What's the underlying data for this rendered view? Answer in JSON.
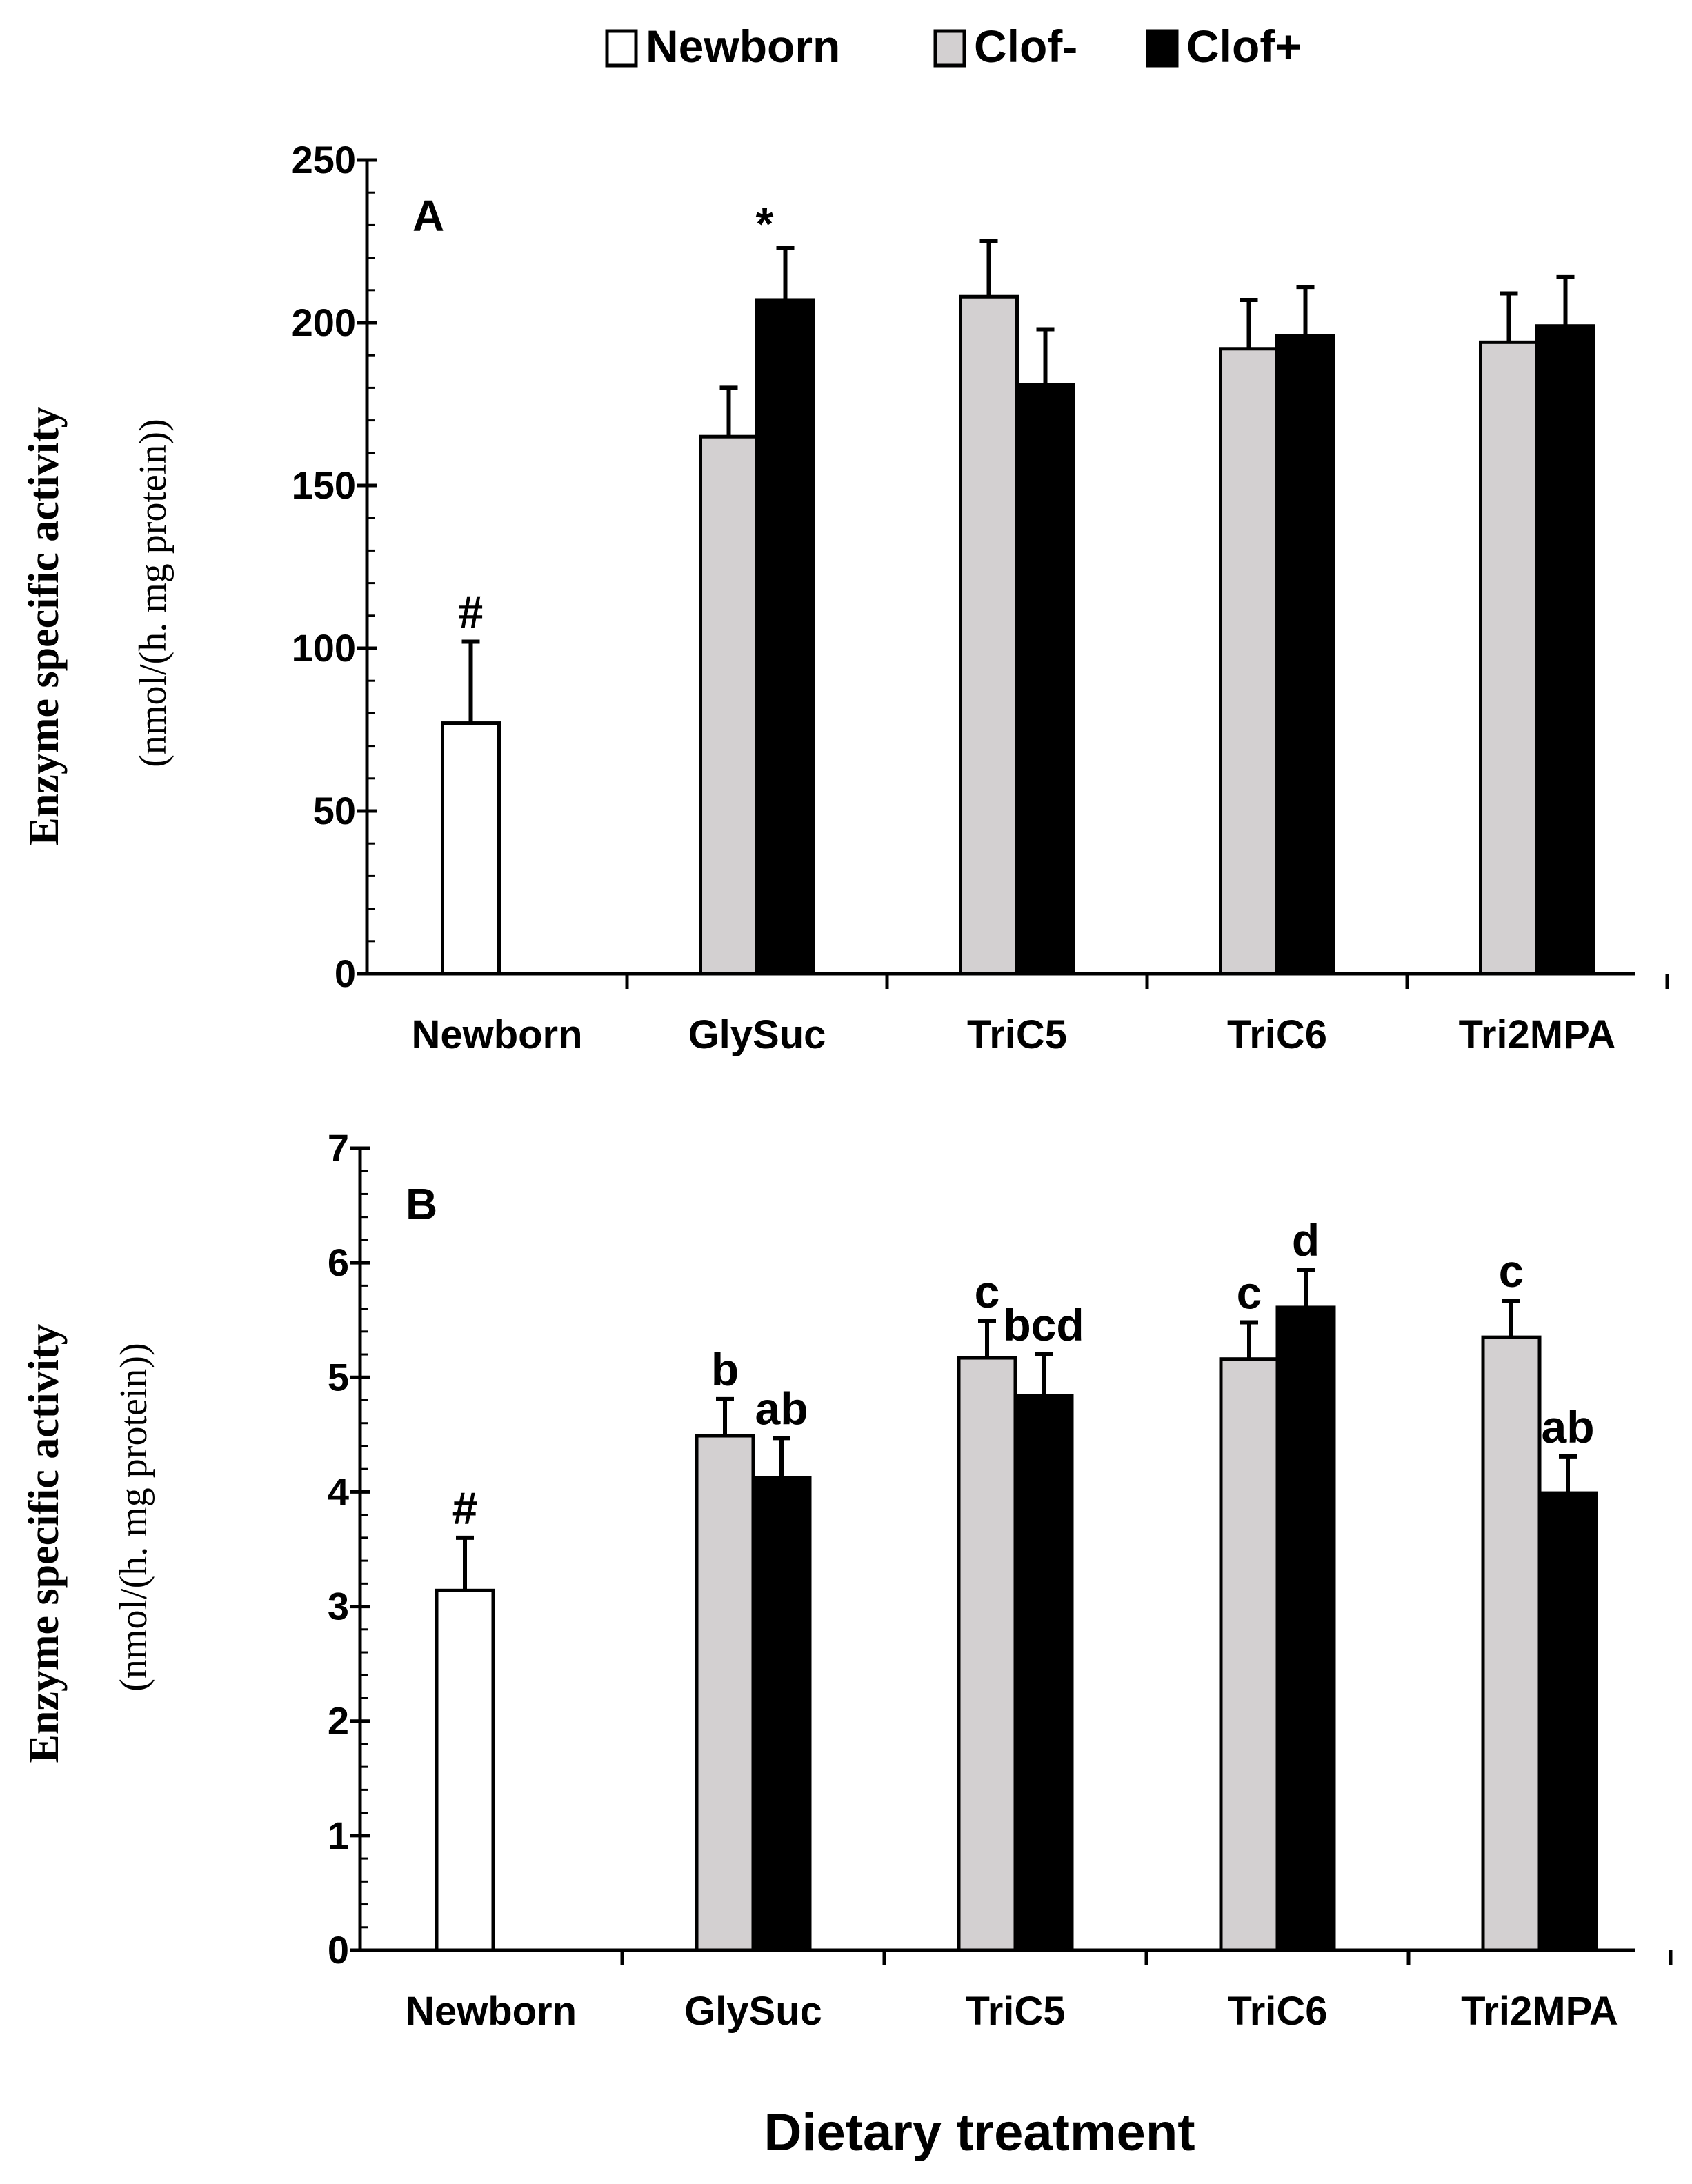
{
  "legend": {
    "entries": [
      {
        "label": "Newborn",
        "color": "#ffffff"
      },
      {
        "label": "Clof-",
        "color": "#d3d0d1"
      },
      {
        "label": "Clof+",
        "color": "#000000"
      }
    ]
  },
  "xaxis_title": "Dietary treatment",
  "chart_data": [
    {
      "type": "bar",
      "panel": "A",
      "categories": [
        "Newborn",
        "GlySuc",
        "TriC5",
        "TriC6",
        "Tri2MPA"
      ],
      "ylabel": "Enzyme specific activity",
      "ylabel_units": "(nmol/(h. mg protein))",
      "ylim": [
        0,
        250
      ],
      "yticks": [
        0,
        50,
        100,
        150,
        200,
        250
      ],
      "minor_step": 10,
      "series": [
        {
          "name": "Newborn",
          "color": "#ffffff",
          "values": [
            77,
            null,
            null,
            null,
            null
          ],
          "errors": [
            25,
            null,
            null,
            null,
            null
          ],
          "annotations": [
            "#",
            null,
            null,
            null,
            null
          ]
        },
        {
          "name": "Clof-",
          "color": "#d3d0d1",
          "values": [
            null,
            165,
            208,
            192,
            194
          ],
          "errors": [
            null,
            15,
            17,
            15,
            15
          ],
          "annotations": [
            null,
            null,
            null,
            null,
            null
          ]
        },
        {
          "name": "Clof+",
          "color": "#000000",
          "values": [
            null,
            207,
            181,
            196,
            199
          ],
          "errors": [
            null,
            16,
            17,
            15,
            15
          ],
          "annotations": [
            null,
            "*",
            null,
            null,
            null
          ]
        }
      ]
    },
    {
      "type": "bar",
      "panel": "B",
      "categories": [
        "Newborn",
        "GlySuc",
        "TriC5",
        "TriC6",
        "Tri2MPA"
      ],
      "ylabel": "Enzyme specific activity",
      "ylabel_units": "(nmol/(h. mg protein))",
      "ylim": [
        0,
        7
      ],
      "yticks": [
        0,
        1,
        2,
        3,
        4,
        5,
        6,
        7
      ],
      "minor_step": 0.2,
      "series": [
        {
          "name": "Newborn",
          "color": "#ffffff",
          "values": [
            3.14,
            null,
            null,
            null,
            null
          ],
          "errors": [
            0.46,
            null,
            null,
            null,
            null
          ],
          "annotations": [
            "#",
            null,
            null,
            null,
            null
          ]
        },
        {
          "name": "Clof-",
          "color": "#d3d0d1",
          "values": [
            null,
            4.49,
            5.17,
            5.16,
            5.35
          ],
          "errors": [
            null,
            0.32,
            0.32,
            0.32,
            0.32
          ],
          "annotations": [
            null,
            "b",
            "c",
            "c",
            "c"
          ]
        },
        {
          "name": "Clof+",
          "color": "#000000",
          "values": [
            null,
            4.12,
            4.84,
            5.61,
            3.99
          ],
          "errors": [
            null,
            0.35,
            0.36,
            0.33,
            0.32
          ],
          "annotations": [
            null,
            "ab",
            "bcd",
            "d",
            "ab"
          ]
        }
      ]
    }
  ]
}
